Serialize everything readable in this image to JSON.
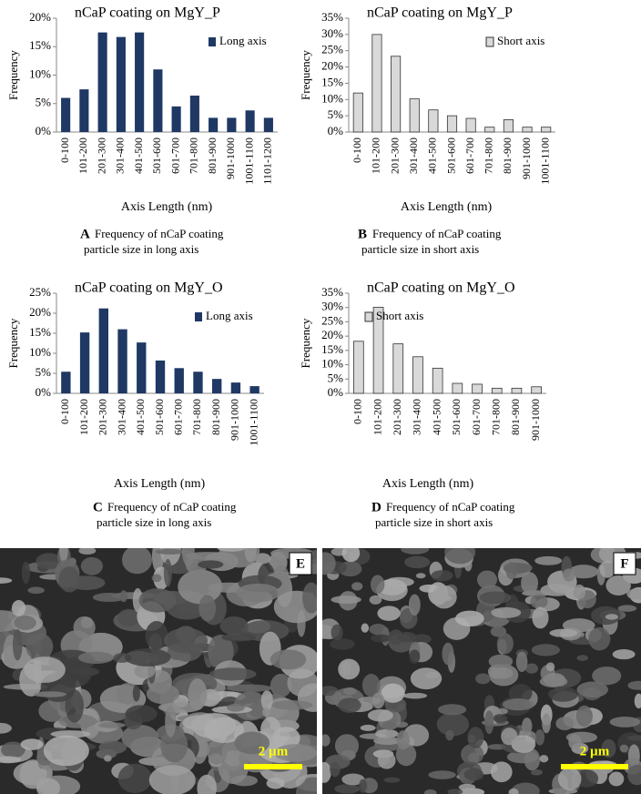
{
  "chart_data": [
    {
      "type": "bar",
      "title": "nCaP coating on MgY_P",
      "xlabel": "Axis Length (nm)",
      "ylabel": "Frequency",
      "categories": [
        "0-100",
        "101-200",
        "201-300",
        "301-400",
        "401-500",
        "501-600",
        "601-700",
        "701-800",
        "801-900",
        "901-1000",
        "1001-1100",
        "1101-1200"
      ],
      "series": [
        {
          "name": "Long axis",
          "color": "#1f3864",
          "values": [
            6,
            7.5,
            17.5,
            16.7,
            17.5,
            11,
            4.5,
            6.4,
            2.5,
            2.5,
            3.8,
            2.5
          ]
        }
      ],
      "ylim": [
        0,
        20
      ],
      "yticks": [
        {
          "value": 0,
          "label": "0%"
        },
        {
          "value": 5,
          "label": "5%"
        },
        {
          "value": 10,
          "label": "10%"
        },
        {
          "value": 15,
          "label": "15%"
        },
        {
          "value": 20,
          "label": "20%"
        }
      ],
      "legend": "upper right",
      "panel": "A",
      "caption": [
        "Frequency of nCaP coating",
        "particle size in long axis"
      ]
    },
    {
      "type": "bar",
      "title": "nCaP coating on MgY_P",
      "xlabel": "Axis Length (nm)",
      "ylabel": "Frequency",
      "categories": [
        "0-100",
        "101-200",
        "201-300",
        "301-400",
        "401-500",
        "501-600",
        "601-700",
        "701-800",
        "801-900",
        "901-1000",
        "1001-1100"
      ],
      "series": [
        {
          "name": "Short axis",
          "color": "#d9d9d9",
          "values": [
            12,
            30,
            23.3,
            10.2,
            6.8,
            5,
            4.2,
            1.5,
            3.8,
            1.5,
            1.5
          ]
        }
      ],
      "ylim": [
        0,
        35
      ],
      "yticks": [
        {
          "value": 0,
          "label": "0%"
        },
        {
          "value": 5,
          "label": "5%"
        },
        {
          "value": 10,
          "label": "10%"
        },
        {
          "value": 15,
          "label": "15%"
        },
        {
          "value": 20,
          "label": "20%"
        },
        {
          "value": 25,
          "label": "25%"
        },
        {
          "value": 30,
          "label": "30%"
        },
        {
          "value": 35,
          "label": "35%"
        }
      ],
      "legend": "upper right",
      "panel": "B",
      "caption": [
        "Frequency of nCaP coating",
        "particle size in short axis"
      ]
    },
    {
      "type": "bar",
      "title": "nCaP coating on MgY_O",
      "xlabel": "Axis Length (nm)",
      "ylabel": "Frequency",
      "categories": [
        "0-100",
        "101-200",
        "201-300",
        "301-400",
        "401-500",
        "501-600",
        "601-700",
        "701-800",
        "801-900",
        "901-1000",
        "1001-1100"
      ],
      "series": [
        {
          "name": "Long axis",
          "color": "#1f3864",
          "values": [
            5.4,
            15.2,
            21.2,
            16,
            12.7,
            8.2,
            6.3,
            5.4,
            3.6,
            2.7,
            1.8
          ]
        }
      ],
      "ylim": [
        0,
        25
      ],
      "yticks": [
        {
          "value": 0,
          "label": "0%"
        },
        {
          "value": 5,
          "label": "5%"
        },
        {
          "value": 10,
          "label": "10%"
        },
        {
          "value": 15,
          "label": "15%"
        },
        {
          "value": 20,
          "label": "20%"
        },
        {
          "value": 25,
          "label": "25%"
        }
      ],
      "legend": "upper right",
      "panel": "C",
      "caption": [
        "Frequency of nCaP coating",
        "particle size in long axis"
      ]
    },
    {
      "type": "bar",
      "title": "nCaP coating on MgY_O",
      "xlabel": "Axis Length (nm)",
      "ylabel": "Frequency",
      "categories": [
        "0-100",
        "101-200",
        "201-300",
        "301-400",
        "401-500",
        "501-600",
        "601-700",
        "701-800",
        "801-900",
        "901-1000"
      ],
      "series": [
        {
          "name": "Short axis",
          "color": "#d9d9d9",
          "values": [
            18.2,
            30.1,
            17.3,
            12.8,
            8.8,
            3.5,
            3.2,
            1.8,
            1.8,
            2.3
          ]
        }
      ],
      "ylim": [
        0,
        35
      ],
      "yticks": [
        {
          "value": 0,
          "label": "0%"
        },
        {
          "value": 5,
          "label": "5%"
        },
        {
          "value": 10,
          "label": "10%"
        },
        {
          "value": 15,
          "label": "15%"
        },
        {
          "value": 20,
          "label": "20%"
        },
        {
          "value": 25,
          "label": "25%"
        },
        {
          "value": 30,
          "label": "30%"
        },
        {
          "value": 35,
          "label": "35%"
        }
      ],
      "legend": "upper left",
      "panel": "D",
      "caption": [
        "Frequency of nCaP coating",
        "particle size in short axis"
      ]
    }
  ],
  "images": [
    {
      "label": "E",
      "scale_bar": "2 µm"
    },
    {
      "label": "F",
      "scale_bar": "2 µm"
    }
  ]
}
